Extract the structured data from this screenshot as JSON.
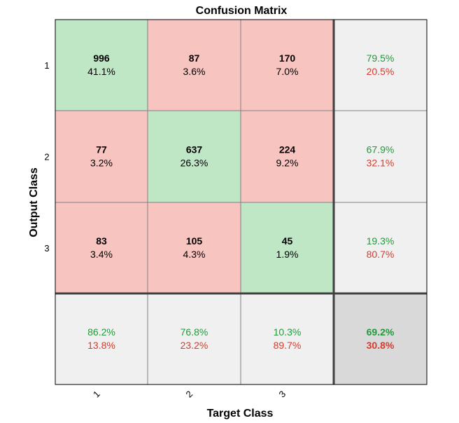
{
  "chart_data": {
    "type": "heatmap",
    "title": "Confusion Matrix",
    "xlabel": "Target Class",
    "ylabel": "Output Class",
    "x_tick_labels": [
      "1",
      "2",
      "3"
    ],
    "y_tick_labels": [
      "1",
      "2",
      "3"
    ],
    "matrix": [
      [
        996,
        87,
        170
      ],
      [
        77,
        637,
        224
      ],
      [
        83,
        105,
        45
      ]
    ],
    "cell_percents": [
      [
        "41.1%",
        "3.6%",
        "7.0%"
      ],
      [
        "3.2%",
        "26.3%",
        "9.2%"
      ],
      [
        "3.4%",
        "4.3%",
        "1.9%"
      ]
    ],
    "row_summary": [
      {
        "correct": "79.5%",
        "incorrect": "20.5%"
      },
      {
        "correct": "67.9%",
        "incorrect": "32.1%"
      },
      {
        "correct": "19.3%",
        "incorrect": "80.7%"
      }
    ],
    "column_summary": [
      {
        "correct": "86.2%",
        "incorrect": "13.8%"
      },
      {
        "correct": "76.8%",
        "incorrect": "23.2%"
      },
      {
        "correct": "10.3%",
        "incorrect": "89.7%"
      }
    ],
    "overall": {
      "correct": "69.2%",
      "incorrect": "30.8%"
    },
    "colors": {
      "correct_cell": "#bfe6c5",
      "incorrect_cell": "#f8c4c0",
      "summary_cell": "#f0f0f0",
      "overall_cell": "#d9d9d9",
      "correct_text": "#1f9a3a",
      "incorrect_text": "#d93a2b",
      "grid_line": "#7f7f7f",
      "separator_line": "#404040"
    }
  }
}
